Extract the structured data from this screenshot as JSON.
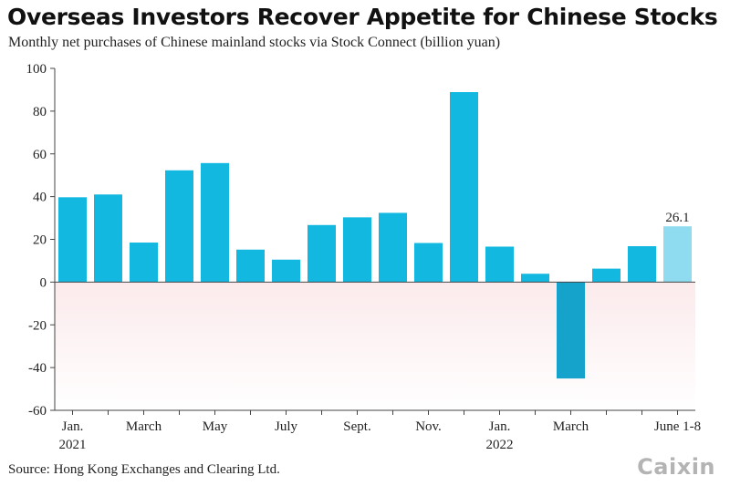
{
  "title": "Overseas Investors Recover Appetite for Chinese Stocks",
  "subtitle": "Monthly net purchases of Chinese mainland stocks via Stock Connect (billion yuan)",
  "source": "Source: Hong Kong Exchanges and Clearing Ltd.",
  "logo_text": "Caixin",
  "colors": {
    "bar": "#12b8e0",
    "bar_negative": "#15a2cb",
    "bar_highlight": "#8fdcf0",
    "negative_band": "#fbeaec"
  },
  "chart_data": {
    "type": "bar",
    "title": "",
    "xlabel": "",
    "ylabel": "",
    "ylim": [
      -60,
      100
    ],
    "yticks": [
      100,
      80,
      60,
      40,
      20,
      0,
      -20,
      -40,
      -60
    ],
    "categories": [
      "Jan. 2021",
      "Feb. 2021",
      "March 2021",
      "April 2021",
      "May 2021",
      "June 2021",
      "July 2021",
      "Aug. 2021",
      "Sept. 2021",
      "Oct. 2021",
      "Nov. 2021",
      "Dec. 2021",
      "Jan. 2022",
      "Feb. 2022",
      "March 2022",
      "April 2022",
      "May 2022",
      "June 1-8 2022"
    ],
    "values": [
      39.7,
      41,
      18.5,
      52.3,
      55.7,
      15.2,
      10.5,
      26.7,
      30.3,
      32.4,
      18.3,
      88.9,
      16.6,
      3.9,
      -45.1,
      6.3,
      16.8,
      26.1
    ],
    "x_tick_labels": [
      {
        "index": 0,
        "lines": [
          "Jan.",
          "2021"
        ]
      },
      {
        "index": 2,
        "lines": [
          "March"
        ]
      },
      {
        "index": 4,
        "lines": [
          "May"
        ]
      },
      {
        "index": 6,
        "lines": [
          "July"
        ]
      },
      {
        "index": 8,
        "lines": [
          "Sept."
        ]
      },
      {
        "index": 10,
        "lines": [
          "Nov."
        ]
      },
      {
        "index": 12,
        "lines": [
          "Jan.",
          "2022"
        ]
      },
      {
        "index": 14,
        "lines": [
          "March"
        ]
      },
      {
        "index": 17,
        "lines": [
          "June 1-8"
        ]
      }
    ],
    "annotations": [
      {
        "index": 17,
        "text": "26.1"
      }
    ],
    "negative_region_shaded": true,
    "grid": false,
    "legend": "none"
  }
}
